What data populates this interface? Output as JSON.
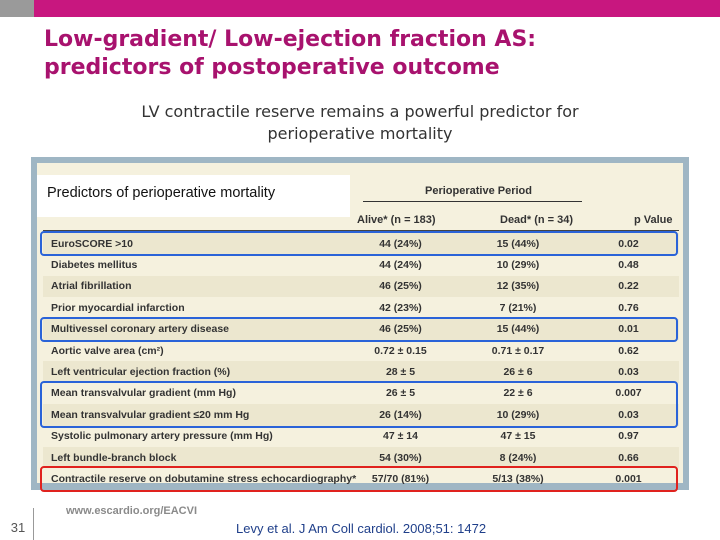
{
  "slide": {
    "title_line1": "Low-gradient/ Low-ejection fraction AS:",
    "title_line2": "predictors of postoperative outcome",
    "subtitle_line1": "LV contractile reserve remains a powerful predictor for",
    "subtitle_line2": "perioperative mortality",
    "page_number": "31",
    "website": "www.escardio.org/EACVI",
    "citation_authors": "Levy et al. J Am Coll cardiol.",
    "citation_ref": " 2008;51: 1472"
  },
  "colors": {
    "top_bar_magenta": "#c8177f",
    "title": "#a8126e",
    "highlight_blue": "#2a63d8",
    "highlight_red": "#e0221e",
    "citation": "#1f3f8a"
  },
  "figure": {
    "caption": "Predictors of perioperative mortality",
    "period_heading": "Perioperative Period",
    "headers": {
      "alive": "Alive* (n = 183)",
      "dead": "Dead* (n = 34)",
      "p": "p Value"
    },
    "rows": [
      {
        "label": "EuroSCORE >10",
        "alive": "44 (24%)",
        "dead": "15 (44%)",
        "p": "0.02",
        "highlight": "blue"
      },
      {
        "label": "Diabetes mellitus",
        "alive": "44 (24%)",
        "dead": "10 (29%)",
        "p": "0.48",
        "highlight": ""
      },
      {
        "label": "Atrial fibrillation",
        "alive": "46 (25%)",
        "dead": "12 (35%)",
        "p": "0.22",
        "highlight": ""
      },
      {
        "label": "Prior myocardial infarction",
        "alive": "42 (23%)",
        "dead": "7 (21%)",
        "p": "0.76",
        "highlight": ""
      },
      {
        "label": "Multivessel coronary artery disease",
        "alive": "46 (25%)",
        "dead": "15 (44%)",
        "p": "0.01",
        "highlight": "blue"
      },
      {
        "label": "Aortic valve area (cm²)",
        "alive": "0.72 ± 0.15",
        "dead": "0.71 ± 0.17",
        "p": "0.62",
        "highlight": ""
      },
      {
        "label": "Left ventricular ejection fraction (%)",
        "alive": "28 ± 5",
        "dead": "26 ± 6",
        "p": "0.03",
        "highlight": ""
      },
      {
        "label": "Mean transvalvular gradient (mm Hg)",
        "alive": "26 ± 5",
        "dead": "22 ± 6",
        "p": "0.007",
        "highlight": "blue"
      },
      {
        "label": "Mean transvalvular gradient ≤20 mm Hg",
        "alive": "26 (14%)",
        "dead": "10 (29%)",
        "p": "0.03",
        "highlight": "blue"
      },
      {
        "label": "Systolic pulmonary artery pressure (mm Hg)",
        "alive": "47 ± 14",
        "dead": "47 ± 15",
        "p": "0.97",
        "highlight": ""
      },
      {
        "label": "Left bundle-branch block",
        "alive": "54 (30%)",
        "dead": "8 (24%)",
        "p": "0.66",
        "highlight": ""
      },
      {
        "label": "Contractile reserve on dobutamine stress echocardiography*",
        "alive": "57/70 (81%)",
        "dead": "5/13 (38%)",
        "p": "0.001",
        "highlight": "red"
      }
    ]
  }
}
